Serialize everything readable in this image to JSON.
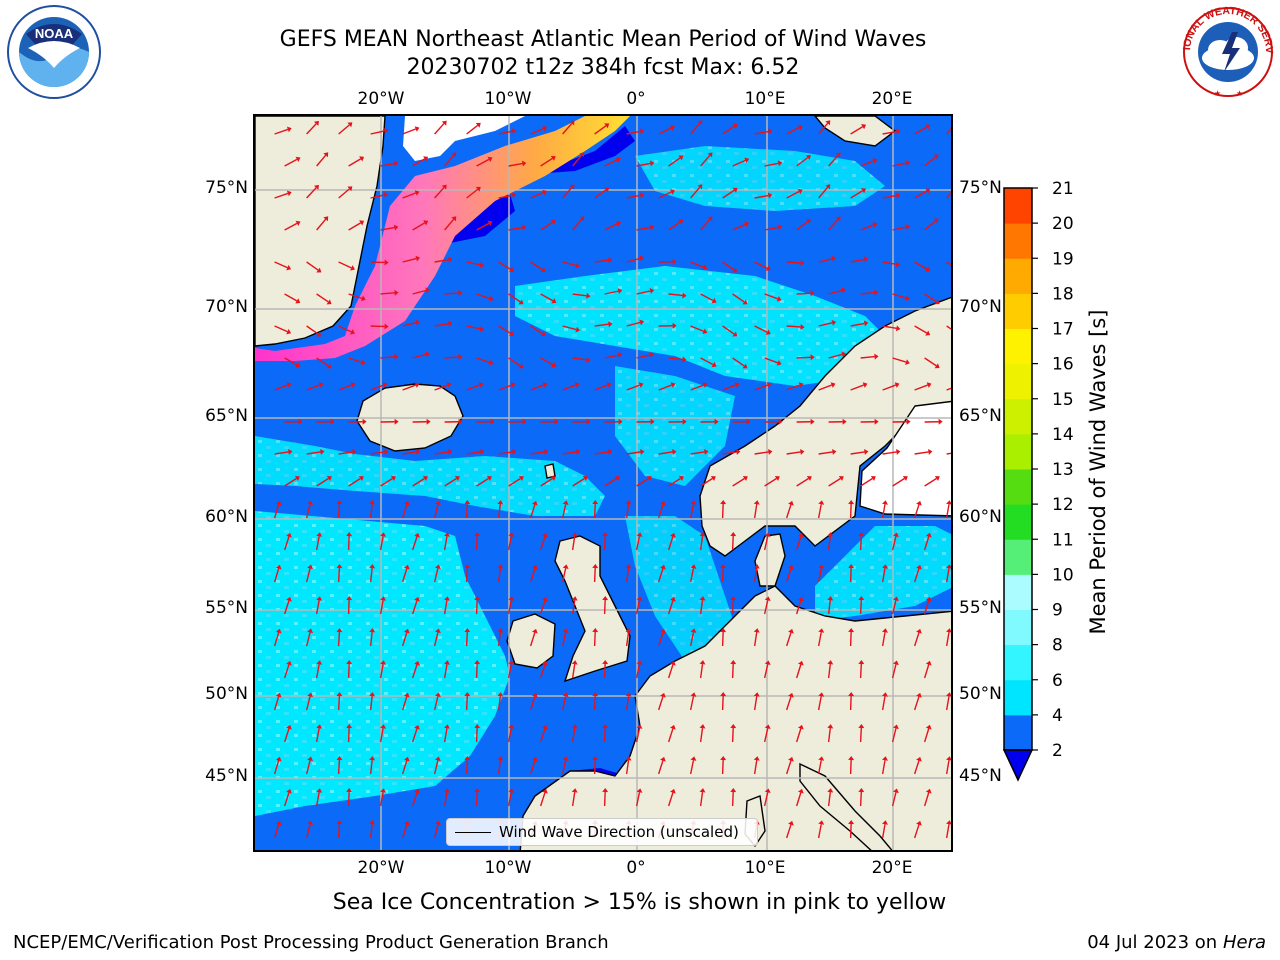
{
  "title": {
    "line1": "GEFS MEAN Northeast Atlantic Mean Period of Wind Waves",
    "line2": "20230702 t12z 384h fcst   Max: 6.52"
  },
  "axes": {
    "lon_ticks": [
      "20°W",
      "10°W",
      "0°",
      "10°E",
      "20°E"
    ],
    "lat_ticks": [
      "75°N",
      "70°N",
      "65°N",
      "60°N",
      "55°N",
      "50°N",
      "45°N"
    ]
  },
  "colorbar": {
    "label": "Mean Period of Wind Waves [s]",
    "ticks": [
      "2",
      "4",
      "6",
      "8",
      "9",
      "10",
      "11",
      "12",
      "13",
      "14",
      "15",
      "16",
      "17",
      "18",
      "19",
      "20",
      "21"
    ],
    "colors": [
      "#0b6af7",
      "#00e5ff",
      "#33f5ff",
      "#80faff",
      "#aafcff",
      "#55ee77",
      "#22dd22",
      "#55dd11",
      "#aaee00",
      "#ccf000",
      "#eef200",
      "#fff200",
      "#ffcc00",
      "#ffaa00",
      "#ff7700",
      "#ff4400",
      "#ff0000"
    ],
    "under_color": "#0000ee"
  },
  "legend": {
    "label": "Wind Wave Direction (unscaled)"
  },
  "footer": {
    "ice_note": "Sea Ice Concentration > 15% is shown in pink to yellow",
    "credit_left": "NCEP/EMC/Verification Post Processing Product Generation Branch",
    "credit_date": "04 Jul 2023 on ",
    "credit_machine": "Hera"
  },
  "logos": {
    "noaa_text": "NOAA",
    "nws_text": "NATIONAL WEATHER SERVICE"
  },
  "colors": {
    "land": "#eeecdb",
    "ocean_low": "#0b6af7",
    "ocean_mid": "#00e5ff",
    "arrows": "#e8121a",
    "grid": "#b8b8b8"
  }
}
